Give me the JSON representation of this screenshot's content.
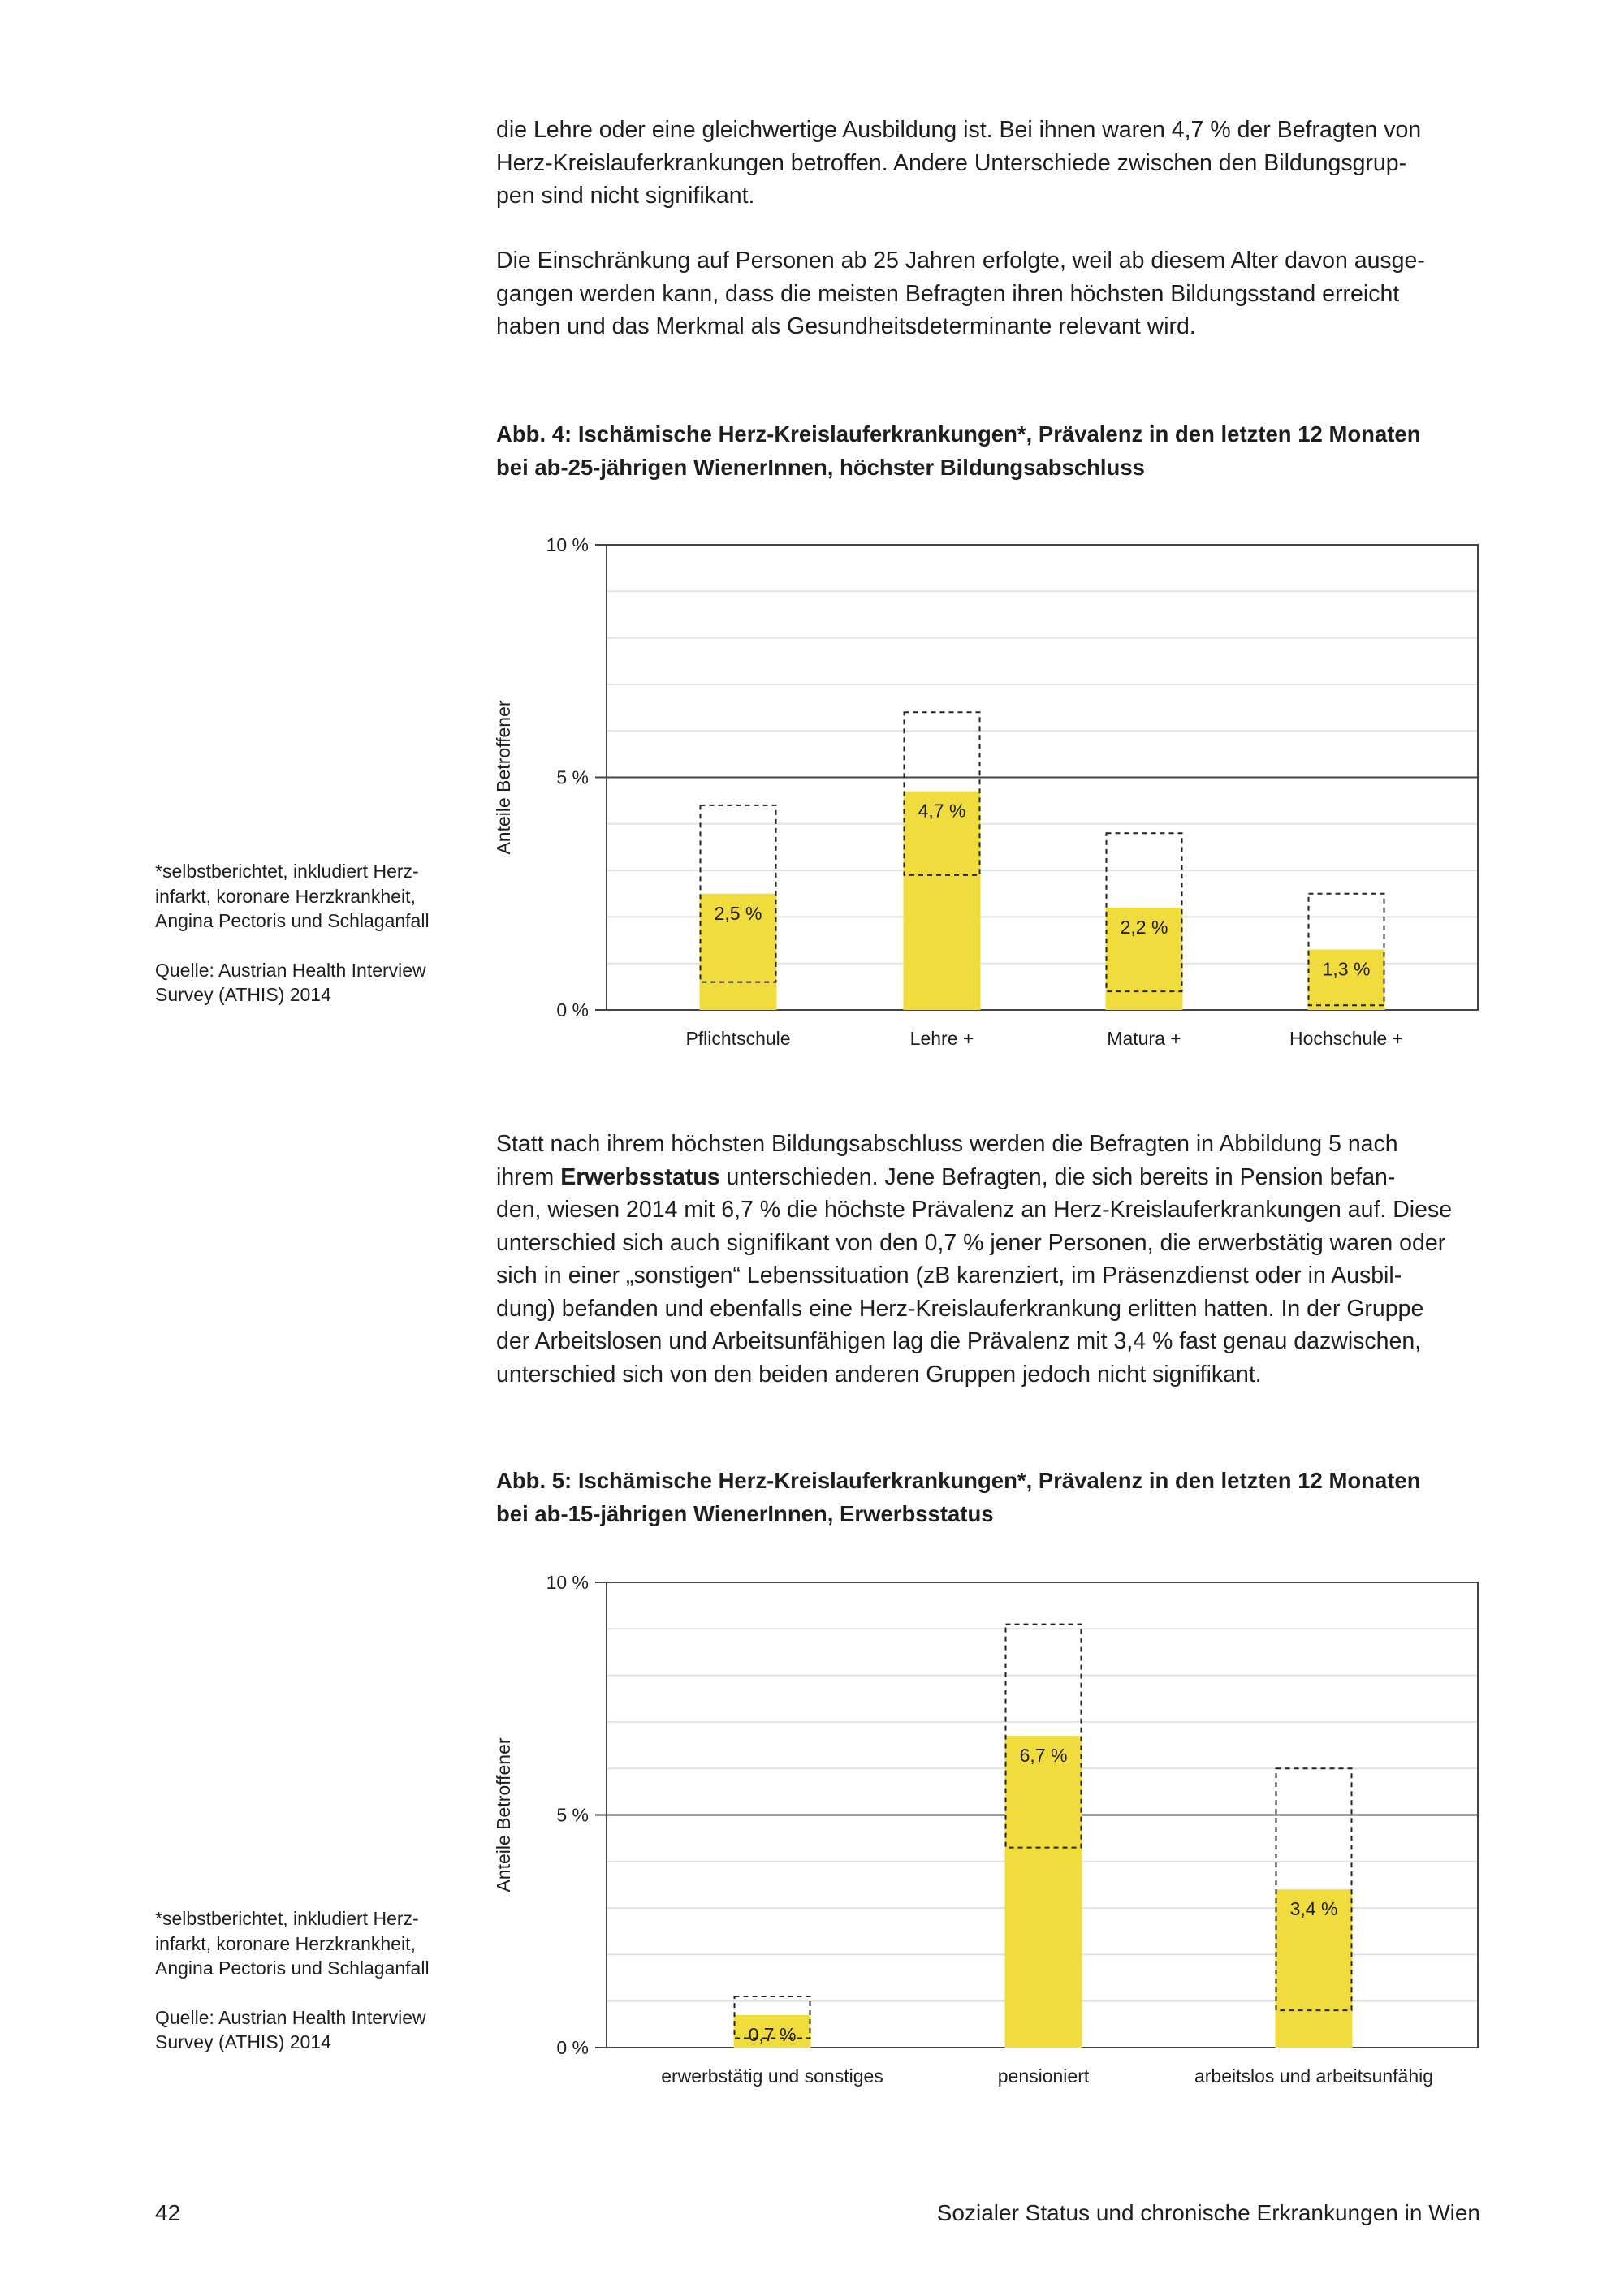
{
  "paragraphs": {
    "p1": [
      "die Lehre oder eine gleichwertige Ausbildung ist. Bei ihnen waren 4,7 % der Befragten von",
      "Herz-Kreislauferkrankungen betroffen. Andere Unterschiede zwischen den Bildungsgrup-",
      "pen sind nicht signifikant."
    ],
    "p2": [
      "Die Einschränkung auf Personen ab 25 Jahren erfolgte, weil ab diesem Alter davon ausge-",
      "gangen werden kann, dass die meisten Befragten ihren höchsten Bildungsstand erreicht",
      "haben und das Merkmal als Gesundheitsdeterminante relevant wird."
    ],
    "p3": {
      "line1": "Statt nach ihrem höchsten Bildungsabschluss werden die Befragten in Abbildung 5 nach",
      "line2_a": "ihrem ",
      "line2_bold": "Erwerbsstatus",
      "line2_b": " unterschieden. Jene Befragten, die sich bereits in Pension befan-",
      "rest": [
        "den, wiesen 2014 mit 6,7 % die höchste Prävalenz an Herz-Kreislauferkrankungen auf. Diese",
        "unterschied sich auch signifikant von den 0,7 % jener Personen, die erwerbstätig waren oder",
        "sich in einer „sonstigen“ Lebenssituation (zB karenziert, im Präsenzdienst oder in Ausbil-",
        "dung) befanden und ebenfalls eine Herz-Kreislauferkrankung erlitten hatten. In der Gruppe",
        "der Arbeitslosen und Arbeitsunfähigen lag die Prävalenz mit 3,4 % fast genau dazwischen,",
        "unterschied sich von den beiden anderen Gruppen jedoch nicht signifikant."
      ]
    }
  },
  "sidenotes": [
    {
      "footnote": [
        "*selbstberichtet, inkludiert Herz-",
        "infarkt, koronare Herzkrankheit,",
        "Angina Pectoris und Schlaganfall"
      ],
      "source": [
        "Quelle: Austrian Health Interview",
        "Survey (ATHIS) 2014"
      ]
    },
    {
      "footnote": [
        "*selbstberichtet, inkludiert Herz-",
        "infarkt, koronare Herzkrankheit,",
        "Angina Pectoris und Schlaganfall"
      ],
      "source": [
        "Quelle: Austrian Health Interview",
        "Survey (ATHIS) 2014"
      ]
    }
  ],
  "footer": {
    "page_number": "42",
    "title": "Sozialer Status und chronische Erkrankungen in Wien"
  },
  "colors": {
    "bar": "#F1DC3E",
    "text": "#1e1e1e",
    "grid": "#e2e2e2",
    "axis": "#444444"
  },
  "chart_data": [
    {
      "type": "bar",
      "title": [
        "Abb. 4: Ischämische Herz-Kreislauferkrankungen*, Prävalenz in den letzten 12 Monaten",
        "bei ab-25-jährigen WienerInnen, höchster Bildungsabschluss"
      ],
      "ylabel": "Anteile Betroffener",
      "ylim": [
        0,
        10
      ],
      "yticks": [
        {
          "v": 0,
          "label": "0 %"
        },
        {
          "v": 5,
          "label": "5 %"
        },
        {
          "v": 10,
          "label": "10 %"
        }
      ],
      "grid": true,
      "categories": [
        "Pflichtschule",
        "Lehre +",
        "Matura +",
        "Hochschule +"
      ],
      "values": [
        2.5,
        4.7,
        2.2,
        1.3
      ],
      "labels": [
        "2,5 %",
        "4,7 %",
        "2,2 %",
        "1,3 %"
      ],
      "ci_low": [
        0.6,
        2.9,
        0.4,
        0.1
      ],
      "ci_high": [
        4.4,
        6.4,
        3.8,
        2.5
      ]
    },
    {
      "type": "bar",
      "title": [
        "Abb. 5: Ischämische Herz-Kreislauferkrankungen*, Prävalenz in den letzten 12 Monaten",
        "bei ab-15-jährigen WienerInnen, Erwerbsstatus"
      ],
      "ylabel": "Anteile Betroffener",
      "ylim": [
        0,
        10
      ],
      "yticks": [
        {
          "v": 0,
          "label": "0 %"
        },
        {
          "v": 5,
          "label": "5 %"
        },
        {
          "v": 10,
          "label": "10 %"
        }
      ],
      "grid": true,
      "categories": [
        "erwerbstätig und sonstiges",
        "pensioniert",
        "arbeitslos und arbeitsunfähig"
      ],
      "values": [
        0.7,
        6.7,
        3.4
      ],
      "labels": [
        "0,7 %",
        "6,7 %",
        "3,4 %"
      ],
      "ci_low": [
        0.2,
        4.3,
        0.8
      ],
      "ci_high": [
        1.1,
        9.1,
        6.0
      ]
    }
  ]
}
